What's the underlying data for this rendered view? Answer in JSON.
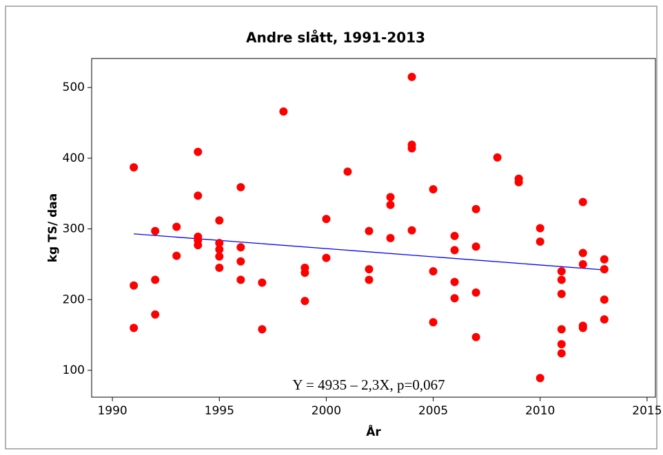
{
  "chart_data": {
    "type": "scatter",
    "title": "Andre slått, 1991-2013",
    "xlabel": "År",
    "ylabel": "kg TS/ daa",
    "annotation": "Y = 4935 – 2,3X, p=0,067",
    "xlim": [
      1989.03,
      2015.39
    ],
    "ylim": [
      62,
      541
    ],
    "xticks": [
      1990,
      1995,
      2000,
      2005,
      2010,
      2015
    ],
    "yticks": [
      100,
      200,
      300,
      400,
      500
    ],
    "series": [
      {
        "color": "#ff0000",
        "x": [
          1991,
          1991,
          1991,
          1992,
          1992,
          1992,
          1993,
          1993,
          1994,
          1994,
          1994,
          1994,
          1994,
          1995,
          1995,
          1995,
          1995,
          1995,
          1996,
          1996,
          1996,
          1996,
          1997,
          1997,
          1998,
          1999,
          1999,
          1999,
          2000,
          2000,
          2001,
          2002,
          2002,
          2002,
          2003,
          2003,
          2003,
          2004,
          2004,
          2004,
          2004,
          2005,
          2005,
          2005,
          2006,
          2006,
          2006,
          2006,
          2007,
          2007,
          2007,
          2007,
          2008,
          2009,
          2009,
          2010,
          2010,
          2010,
          2011,
          2011,
          2011,
          2011,
          2011,
          2011,
          2012,
          2012,
          2012,
          2012,
          2012,
          2013,
          2013,
          2013,
          2013
        ],
        "values": [
          387,
          220,
          160,
          297,
          228,
          179,
          303,
          262,
          409,
          347,
          289,
          284,
          277,
          312,
          280,
          271,
          261,
          245,
          359,
          274,
          254,
          228,
          224,
          158,
          466,
          245,
          238,
          198,
          314,
          259,
          381,
          297,
          243,
          228,
          345,
          334,
          287,
          515,
          419,
          414,
          298,
          356,
          240,
          168,
          290,
          270,
          225,
          202,
          328,
          275,
          210,
          147,
          401,
          371,
          366,
          301,
          282,
          89,
          240,
          228,
          208,
          158,
          137,
          124,
          338,
          266,
          250,
          163,
          160,
          257,
          243,
          200,
          172
        ]
      }
    ],
    "fit": {
      "color": "#0000ff",
      "x": [
        1991,
        2013
      ],
      "values": [
        293,
        242
      ]
    }
  }
}
